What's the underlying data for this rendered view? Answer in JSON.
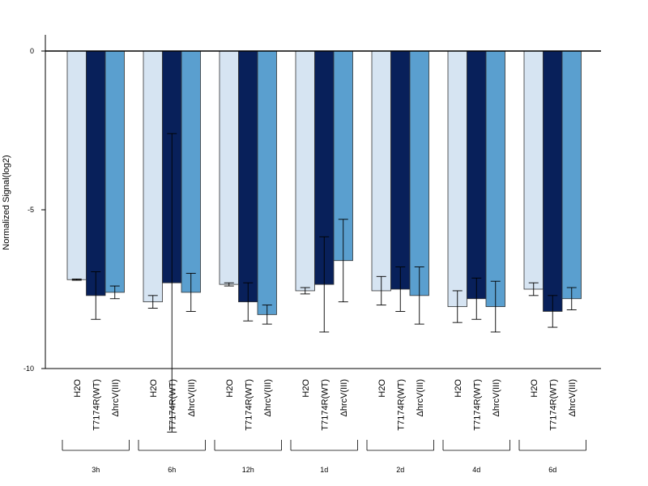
{
  "chart_data": {
    "type": "bar",
    "ylabel": "Normalized Signal(log2)",
    "ylim": [
      -10,
      0.5
    ],
    "yticks": [
      "0",
      "-5",
      "-10"
    ],
    "ytick_values": [
      0,
      -5,
      -10
    ],
    "colors": {
      "H2O": "#d6e4f2",
      "T7174R(WT)": "#08205a",
      "hrcV(III)": "#5a9fcf"
    },
    "groups": [
      {
        "label": "3h",
        "bars": [
          {
            "category": "H2O",
            "value": -7.2,
            "err": 0.02
          },
          {
            "category": "T7174R(WT)",
            "value": -7.7,
            "err": 0.75
          },
          {
            "category": "ΔhrcV(III)",
            "value": -7.6,
            "err": 0.2
          }
        ]
      },
      {
        "label": "6h",
        "bars": [
          {
            "category": "H2O",
            "value": -7.9,
            "err": 0.2
          },
          {
            "category": "T7174R(WT)",
            "value": -7.3,
            "err": 4.7
          },
          {
            "category": "ΔhrcV(III)",
            "value": -7.6,
            "err": 0.6
          }
        ]
      },
      {
        "label": "12h",
        "bars": [
          {
            "category": "H2O",
            "value": -7.35,
            "err": 0.05
          },
          {
            "category": "T7174R(WT)",
            "value": -7.9,
            "err": 0.6
          },
          {
            "category": "ΔhrcV(III)",
            "value": -8.3,
            "err": 0.3
          }
        ]
      },
      {
        "label": "1d",
        "bars": [
          {
            "category": "H2O",
            "value": -7.55,
            "err": 0.1
          },
          {
            "category": "T7174R(WT)",
            "value": -7.35,
            "err": 1.5
          },
          {
            "category": "ΔhrcV(III)",
            "value": -6.6,
            "err": 1.3
          }
        ]
      },
      {
        "label": "2d",
        "bars": [
          {
            "category": "H2O",
            "value": -7.55,
            "err": 0.45
          },
          {
            "category": "T7174R(WT)",
            "value": -7.5,
            "err": 0.7
          },
          {
            "category": "ΔhrcV(III)",
            "value": -7.7,
            "err": 0.9
          }
        ]
      },
      {
        "label": "4d",
        "bars": [
          {
            "category": "H2O",
            "value": -8.05,
            "err": 0.5
          },
          {
            "category": "T7174R(WT)",
            "value": -7.8,
            "err": 0.65
          },
          {
            "category": "ΔhrcV(III)",
            "value": -8.05,
            "err": 0.8
          }
        ]
      },
      {
        "label": "6d",
        "bars": [
          {
            "category": "H2O",
            "value": -7.5,
            "err": 0.2
          },
          {
            "category": "T7174R(WT)",
            "value": -8.2,
            "err": 0.5
          },
          {
            "category": "ΔhrcV(III)",
            "value": -7.8,
            "err": 0.35
          }
        ]
      }
    ]
  }
}
